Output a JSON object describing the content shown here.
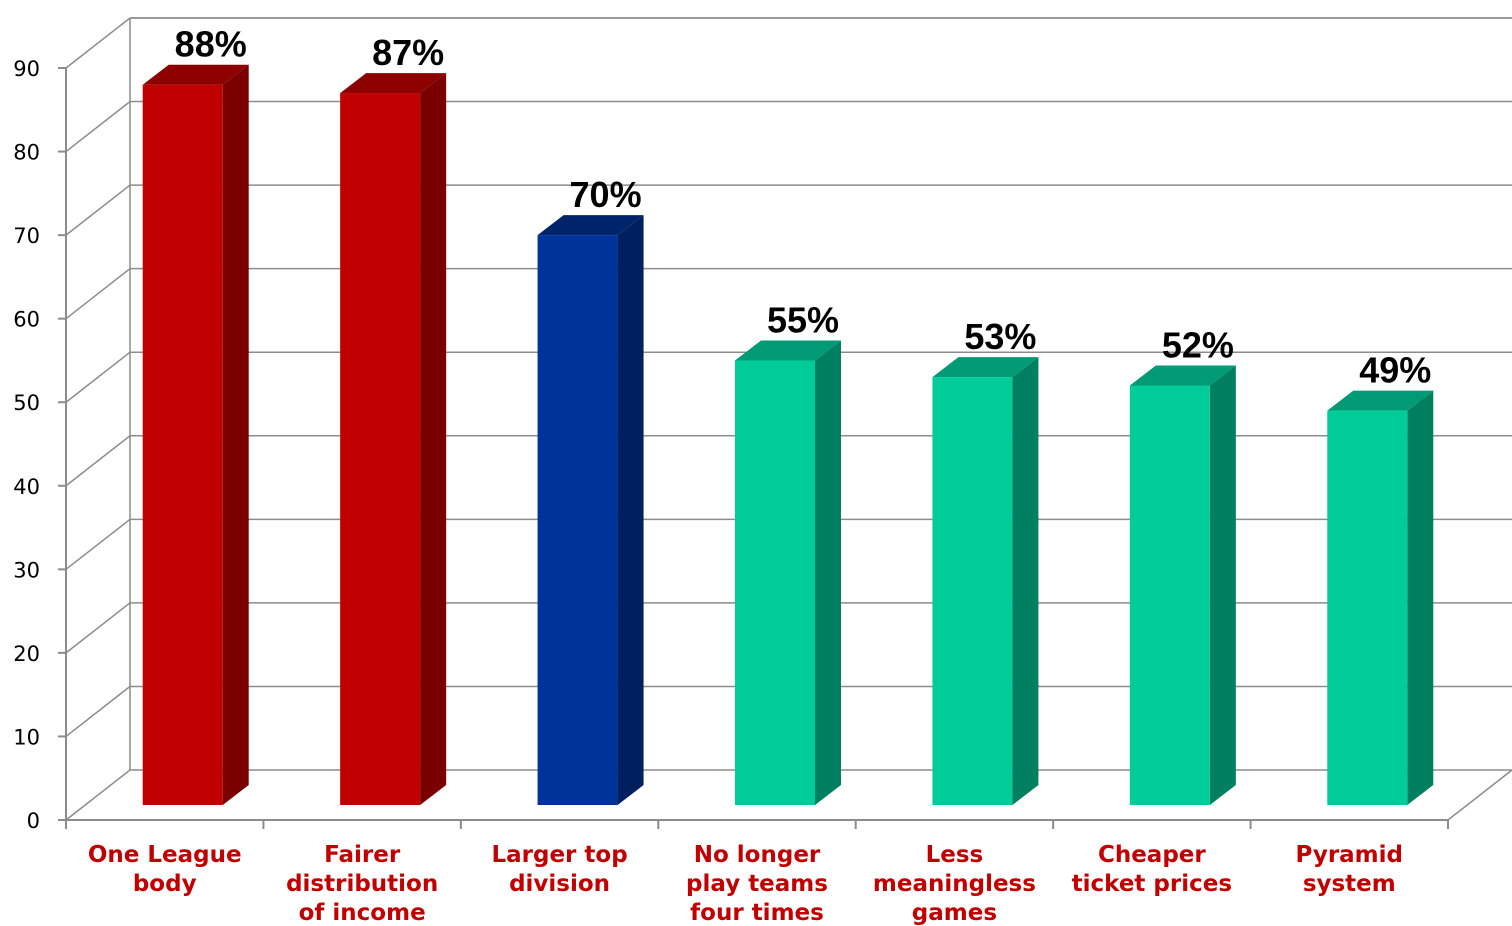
{
  "chart_data": {
    "type": "bar",
    "categories": [
      [
        "One League",
        "body"
      ],
      [
        "Fairer",
        "distribution",
        "of income"
      ],
      [
        "Larger top",
        "division"
      ],
      [
        "No longer",
        "play teams",
        "four times"
      ],
      [
        "Less",
        "meaningless",
        "games"
      ],
      [
        "Cheaper",
        "ticket prices"
      ],
      [
        "Pyramid",
        "system"
      ]
    ],
    "values": [
      88,
      87,
      70,
      55,
      53,
      52,
      49
    ],
    "data_labels": [
      "88%",
      "87%",
      "70%",
      "55%",
      "53%",
      "52%",
      "49%"
    ],
    "bar_colors": [
      {
        "front": "#c00000",
        "side": "#7a0000",
        "top": "#8c0000"
      },
      {
        "front": "#c00000",
        "side": "#7a0000",
        "top": "#8c0000"
      },
      {
        "front": "#003399",
        "side": "#001f5e",
        "top": "#00246b"
      },
      {
        "front": "#00cc99",
        "side": "#008060",
        "top": "#009a75"
      },
      {
        "front": "#00cc99",
        "side": "#008060",
        "top": "#009a75"
      },
      {
        "front": "#00cc99",
        "side": "#008060",
        "top": "#009a75"
      },
      {
        "front": "#00cc99",
        "side": "#008060",
        "top": "#009a75"
      }
    ],
    "category_label_color": "#c00000",
    "y_ticks": [
      0,
      10,
      20,
      30,
      40,
      50,
      60,
      70,
      80,
      90
    ],
    "ylim": [
      0,
      90
    ],
    "grid": true,
    "title": "",
    "xlabel": "",
    "ylabel": ""
  }
}
